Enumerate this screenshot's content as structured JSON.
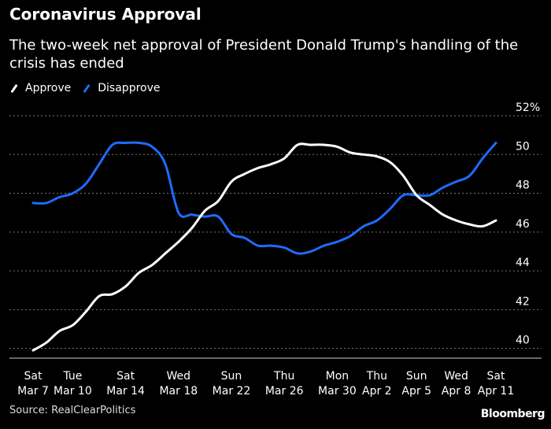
{
  "title": "Coronavirus Approval",
  "subtitle": "The two-week net approval of President Donald Trump's handling of the crisis has ended",
  "source": "Source: RealClearPolitics",
  "brand": "Bloomberg",
  "colors": {
    "approve": "#ffffff",
    "disapprove": "#1f6bff",
    "grid": "#777777"
  },
  "chart_data": {
    "type": "line",
    "title": "Coronavirus Approval",
    "ylim": [
      39.5,
      52
    ],
    "y_ticks": [
      40,
      42,
      44,
      46,
      48,
      50,
      52
    ],
    "y_tick_labels": [
      "40",
      "42",
      "44",
      "46",
      "48",
      "50",
      "52%"
    ],
    "grid": "horizontal dotted",
    "legend_position": "top-left",
    "x_labels": [
      {
        "day": "Sat",
        "date": "Mar 7"
      },
      {
        "day": "Tue",
        "date": "Mar 10"
      },
      {
        "day": "Sat",
        "date": "Mar 14"
      },
      {
        "day": "Wed",
        "date": "Mar 18"
      },
      {
        "day": "Sun",
        "date": "Mar 22"
      },
      {
        "day": "Thu",
        "date": "Mar 26"
      },
      {
        "day": "Mon",
        "date": "Mar 30"
      },
      {
        "day": "Thu",
        "date": "Apr 2"
      },
      {
        "day": "Sun",
        "date": "Apr 5"
      },
      {
        "day": "Wed",
        "date": "Apr 8"
      },
      {
        "day": "Sat",
        "date": "Apr 11"
      }
    ],
    "x": [
      "Mar 7",
      "Mar 8",
      "Mar 9",
      "Mar 10",
      "Mar 11",
      "Mar 12",
      "Mar 13",
      "Mar 14",
      "Mar 15",
      "Mar 16",
      "Mar 17",
      "Mar 18",
      "Mar 19",
      "Mar 20",
      "Mar 21",
      "Mar 22",
      "Mar 23",
      "Mar 24",
      "Mar 25",
      "Mar 26",
      "Mar 27",
      "Mar 28",
      "Mar 29",
      "Mar 30",
      "Mar 31",
      "Apr 1",
      "Apr 2",
      "Apr 3",
      "Apr 4",
      "Apr 5",
      "Apr 6",
      "Apr 7",
      "Apr 8",
      "Apr 9",
      "Apr 10",
      "Apr 11"
    ],
    "series": [
      {
        "name": "Approve",
        "color": "#ffffff",
        "values": [
          39.9,
          40.3,
          40.9,
          41.2,
          41.9,
          42.7,
          42.8,
          43.2,
          43.9,
          44.3,
          44.9,
          45.5,
          46.2,
          47.1,
          47.6,
          48.6,
          49.0,
          49.3,
          49.5,
          49.8,
          50.5,
          50.5,
          50.5,
          50.4,
          50.1,
          50.0,
          49.9,
          49.6,
          48.9,
          47.9,
          47.4,
          46.9,
          46.6,
          46.4,
          46.3,
          46.6
        ]
      },
      {
        "name": "Disapprove",
        "color": "#1f6bff",
        "values": [
          47.5,
          47.5,
          47.8,
          48.0,
          48.5,
          49.5,
          50.5,
          50.6,
          50.6,
          50.4,
          49.5,
          47.0,
          46.9,
          46.8,
          46.8,
          45.9,
          45.7,
          45.3,
          45.3,
          45.2,
          44.9,
          45.0,
          45.3,
          45.5,
          45.8,
          46.3,
          46.6,
          47.2,
          47.9,
          47.9,
          47.9,
          48.3,
          48.6,
          48.9,
          49.8,
          50.6
        ]
      }
    ]
  }
}
